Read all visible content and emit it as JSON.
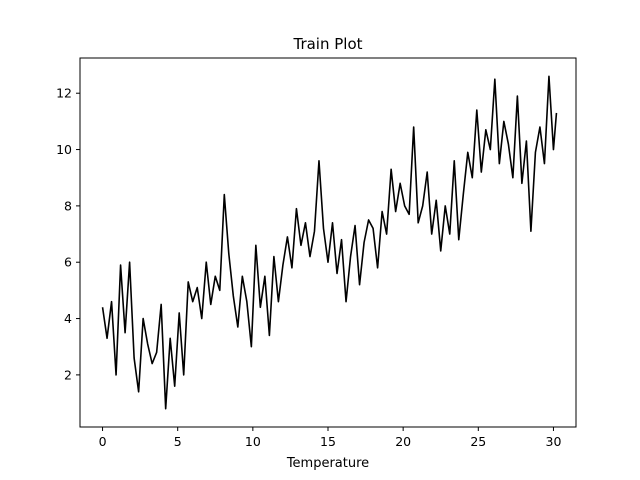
{
  "chart_data": {
    "type": "line",
    "title": "Train Plot",
    "xlabel": "Temperature",
    "ylabel": "",
    "xlim": [
      -1.5,
      31.5
    ],
    "ylim": [
      0.15,
      13.25
    ],
    "xticks": [
      0,
      5,
      10,
      15,
      20,
      25,
      30
    ],
    "yticks": [
      2,
      4,
      6,
      8,
      10,
      12
    ],
    "grid": false,
    "legend": "none",
    "series": [
      {
        "color": "#000000",
        "x": [
          0,
          0.3,
          0.6,
          0.9,
          1.2,
          1.5,
          1.8,
          2.1,
          2.4,
          2.7,
          3.0,
          3.3,
          3.6,
          3.9,
          4.2,
          4.5,
          4.8,
          5.1,
          5.4,
          5.7,
          6.0,
          6.3,
          6.6,
          6.9,
          7.2,
          7.5,
          7.8,
          8.1,
          8.4,
          8.7,
          9.0,
          9.3,
          9.6,
          9.9,
          10.2,
          10.5,
          10.8,
          11.1,
          11.4,
          11.7,
          12.0,
          12.3,
          12.6,
          12.9,
          13.2,
          13.5,
          13.8,
          14.1,
          14.4,
          14.7,
          15.0,
          15.3,
          15.6,
          15.9,
          16.2,
          16.5,
          16.8,
          17.1,
          17.4,
          17.7,
          18.0,
          18.3,
          18.6,
          18.9,
          19.2,
          19.5,
          19.8,
          20.1,
          20.4,
          20.7,
          21.0,
          21.3,
          21.6,
          21.9,
          22.2,
          22.5,
          22.8,
          23.1,
          23.4,
          23.7,
          24.0,
          24.3,
          24.6,
          24.9,
          25.2,
          25.5,
          25.8,
          26.1,
          26.4,
          26.7,
          27.0,
          27.3,
          27.6,
          27.9,
          28.2,
          28.5,
          28.8,
          29.1,
          29.4,
          29.7,
          30.0,
          30.2
        ],
        "y": [
          4.4,
          3.3,
          4.6,
          2.0,
          5.9,
          3.5,
          6.0,
          2.6,
          1.4,
          4.0,
          3.1,
          2.4,
          2.8,
          4.5,
          0.8,
          3.3,
          1.6,
          4.2,
          2.0,
          5.3,
          4.6,
          5.1,
          4.0,
          6.0,
          4.5,
          5.5,
          5.0,
          8.4,
          6.3,
          4.8,
          3.7,
          5.5,
          4.6,
          3.0,
          6.6,
          4.4,
          5.5,
          3.4,
          6.2,
          4.6,
          5.9,
          6.9,
          5.8,
          7.9,
          6.6,
          7.4,
          6.2,
          7.1,
          9.6,
          7.2,
          6.0,
          7.4,
          5.6,
          6.8,
          4.6,
          6.2,
          7.3,
          5.2,
          6.7,
          7.5,
          7.2,
          5.8,
          7.8,
          7.0,
          9.3,
          7.8,
          8.8,
          8.0,
          7.7,
          10.8,
          7.4,
          8.0,
          9.2,
          7.0,
          8.2,
          6.4,
          8.0,
          7.0,
          9.6,
          6.8,
          8.4,
          9.9,
          9.0,
          11.4,
          9.2,
          10.7,
          10.0,
          12.5,
          9.5,
          11.0,
          10.2,
          9.0,
          11.9,
          8.8,
          10.3,
          7.1,
          9.9,
          10.8,
          9.5,
          12.6,
          10.0,
          11.3
        ]
      }
    ]
  }
}
